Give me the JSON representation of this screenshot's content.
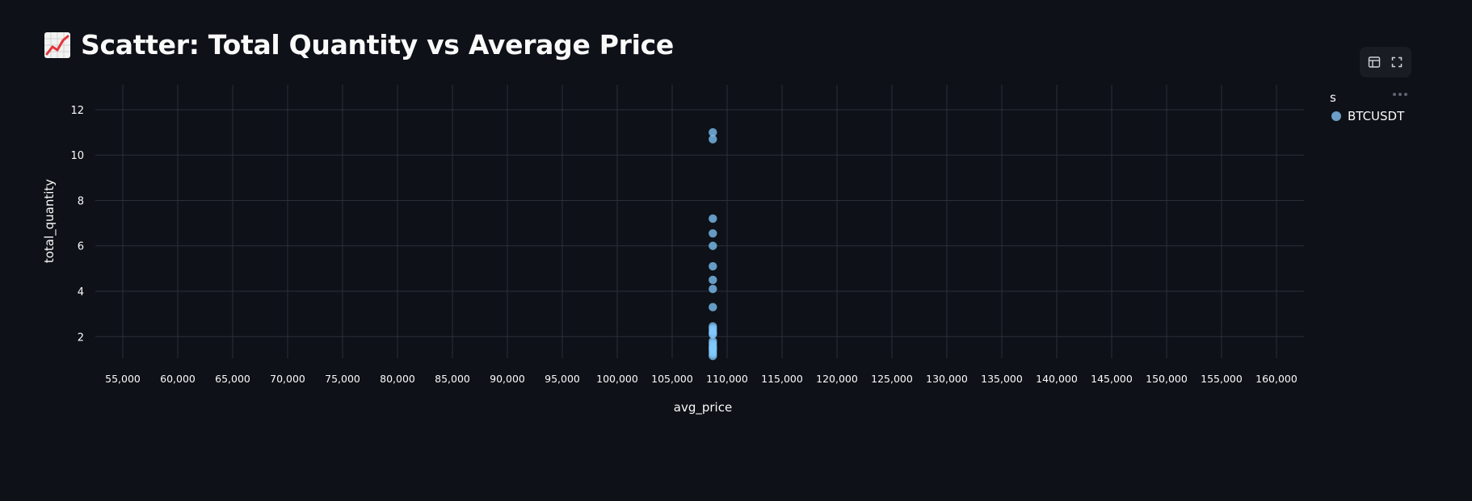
{
  "header": {
    "title": "Scatter: Total Quantity vs Average Price",
    "title_icon": "chart-increasing-emoji"
  },
  "toolbar": {
    "icons": [
      "table-view-icon",
      "fullscreen-icon",
      "more-options-icon"
    ]
  },
  "colors": {
    "background": "#0e1117",
    "grid": "#2b2f38",
    "text": "#fafafa",
    "marker": "#83c9ff",
    "legend_marker": "#6b9ec8"
  },
  "chart_data": {
    "type": "scatter",
    "title": "",
    "xlabel": "avg_price",
    "ylabel": "total_quantity",
    "xlim": [
      52500,
      162500
    ],
    "ylim": [
      1.05,
      13.1
    ],
    "x_ticks": [
      55000,
      60000,
      65000,
      70000,
      75000,
      80000,
      85000,
      90000,
      95000,
      100000,
      105000,
      110000,
      115000,
      120000,
      125000,
      130000,
      135000,
      140000,
      145000,
      150000,
      155000,
      160000
    ],
    "x_tick_labels": [
      "55,000",
      "60,000",
      "65,000",
      "70,000",
      "75,000",
      "80,000",
      "85,000",
      "90,000",
      "95,000",
      "100,000",
      "105,000",
      "110,000",
      "115,000",
      "120,000",
      "125,000",
      "130,000",
      "135,000",
      "140,000",
      "145,000",
      "150,000",
      "155,000",
      "160,000"
    ],
    "y_ticks": [
      2,
      4,
      6,
      8,
      10,
      12
    ],
    "y_tick_labels": [
      "2",
      "4",
      "6",
      "8",
      "10",
      "12"
    ],
    "grid": true,
    "legend": {
      "title": "s",
      "placement": "right",
      "entries": [
        "BTCUSDT"
      ]
    },
    "series": [
      {
        "name": "BTCUSDT",
        "x": [
          108700,
          108700,
          108700,
          108700,
          108700,
          108700,
          108700,
          108700,
          108700,
          108700,
          108700,
          108700,
          108700,
          108700,
          108700,
          108700,
          108700,
          108700,
          108700,
          108700,
          108700,
          108700
        ],
        "y": [
          11.0,
          10.7,
          7.2,
          6.55,
          6.0,
          5.1,
          4.5,
          4.1,
          3.3,
          2.45,
          2.35,
          2.25,
          2.15,
          2.1,
          1.8,
          1.7,
          1.6,
          1.5,
          1.45,
          1.35,
          1.25,
          1.15
        ]
      }
    ]
  }
}
